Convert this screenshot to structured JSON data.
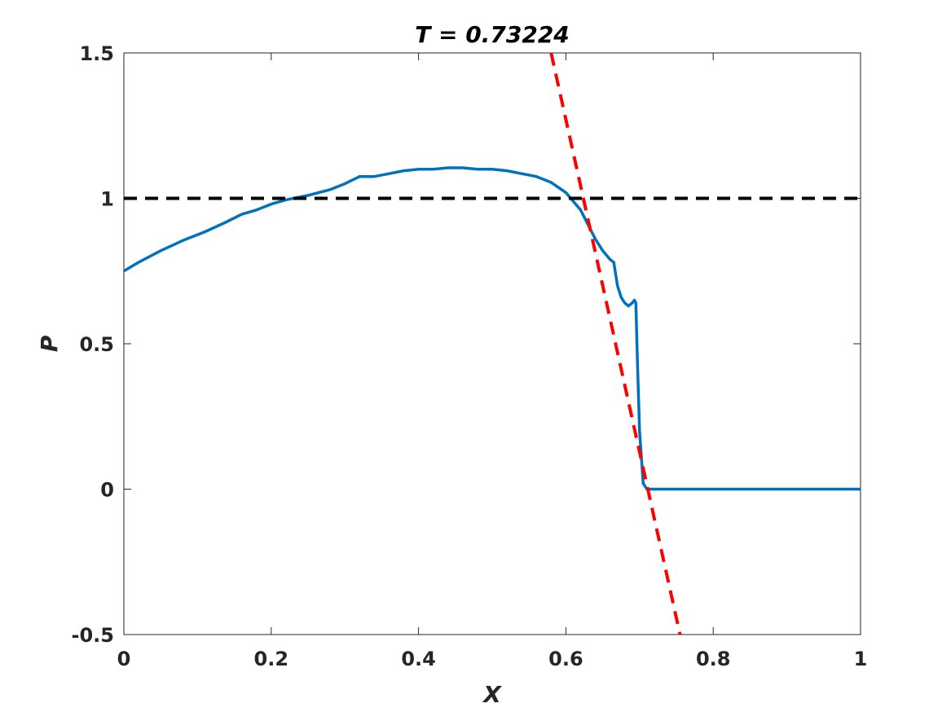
{
  "chart_data": {
    "type": "line",
    "title": "T = 0.73224",
    "xlabel": "X",
    "ylabel": "P",
    "xlim": [
      0,
      1
    ],
    "ylim": [
      -0.5,
      1.5
    ],
    "xticks": [
      0,
      0.2,
      0.4,
      0.6,
      0.8,
      1
    ],
    "xtick_labels": [
      "0",
      "0.2",
      "0.4",
      "0.6",
      "0.8",
      "1"
    ],
    "yticks": [
      -0.5,
      0,
      0.5,
      1,
      1.5
    ],
    "ytick_labels": [
      "-0.5",
      "0",
      "0.5",
      "1",
      "1.5"
    ],
    "grid": false,
    "legend": "none",
    "series": [
      {
        "style": "solid",
        "color": "#0072BD",
        "x": [
          0,
          0.02,
          0.05,
          0.08,
          0.11,
          0.14,
          0.16,
          0.18,
          0.2,
          0.22,
          0.25,
          0.28,
          0.3,
          0.32,
          0.34,
          0.36,
          0.38,
          0.4,
          0.42,
          0.44,
          0.46,
          0.48,
          0.5,
          0.52,
          0.54,
          0.56,
          0.58,
          0.6,
          0.62,
          0.64,
          0.65,
          0.66,
          0.665,
          0.67,
          0.675,
          0.68,
          0.685,
          0.69,
          0.693,
          0.695,
          0.697,
          0.7,
          0.705,
          0.71,
          0.8,
          0.9,
          1.0
        ],
        "y": [
          0.75,
          0.78,
          0.82,
          0.855,
          0.885,
          0.92,
          0.945,
          0.96,
          0.98,
          0.995,
          1.01,
          1.03,
          1.05,
          1.075,
          1.075,
          1.085,
          1.095,
          1.1,
          1.1,
          1.105,
          1.105,
          1.1,
          1.1,
          1.095,
          1.085,
          1.075,
          1.055,
          1.02,
          0.96,
          0.86,
          0.82,
          0.79,
          0.78,
          0.7,
          0.66,
          0.64,
          0.63,
          0.64,
          0.65,
          0.64,
          0.45,
          0.2,
          0.02,
          0.0,
          0.0,
          0.0,
          0.0
        ]
      },
      {
        "style": "dashed",
        "color": "#000000",
        "x": [
          0,
          1
        ],
        "y": [
          1,
          1
        ]
      },
      {
        "style": "dashed",
        "color": "#FF0000",
        "x": [
          0.58,
          0.755
        ],
        "y": [
          1.5,
          -0.5
        ]
      }
    ]
  }
}
